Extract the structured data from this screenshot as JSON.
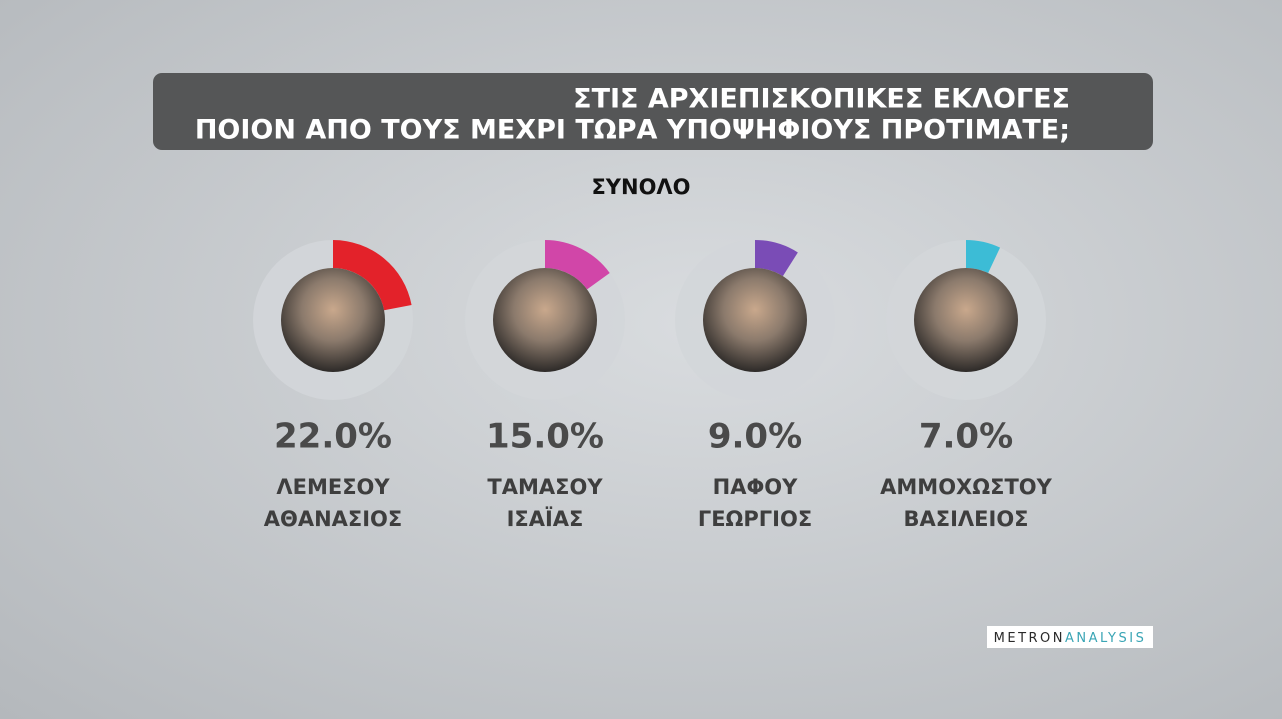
{
  "chart_data": {
    "type": "radial-gauges",
    "title": [
      "ΣΤΙΣ ΑΡΧΙΕΠΙΣΚΟΠΙΚΕΣ ΕΚΛΟΓΕΣ",
      "ΠΟΙΟΝ ΑΠΟ ΤΟΥΣ ΜΕΧΡΙ ΤΩΡΑ ΥΠΟΨΗΦΙΟΥΣ ΠΡΟΤΙΜΑΤΕ;"
    ],
    "subtitle": "ΣΥΝΟΛΟ",
    "categories": [
      [
        "ΛΕΜΕΣΟΥ",
        "ΑΘΑΝΑΣΙΟΣ"
      ],
      [
        "ΤΑΜΑΣΟΥ",
        "ΙΣΑΪΑΣ"
      ],
      [
        "ΠΑΦΟΥ",
        "ΓΕΩΡΓΙΟΣ"
      ],
      [
        "ΑΜΜΟΧΩΣΤΟΥ",
        "ΒΑΣΙΛΕΙΟΣ"
      ]
    ],
    "values": [
      22.0,
      15.0,
      9.0,
      7.0
    ],
    "value_labels": [
      "22.0%",
      "15.0%",
      "9.0%",
      "7.0%"
    ],
    "colors": [
      "#e3222a",
      "#d146a8",
      "#7a4cb6",
      "#3cbcd6"
    ],
    "brand": [
      "METRON",
      "ANALYSIS"
    ]
  }
}
